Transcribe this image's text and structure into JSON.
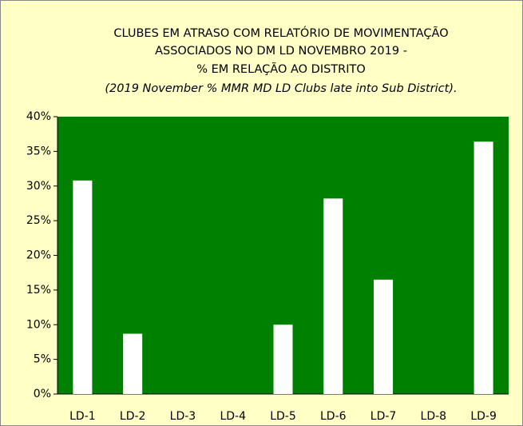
{
  "chart_data": {
    "type": "bar",
    "title": [
      "CLUBES EM ATRASO COM RELATÓRIO DE MOVIMENTAÇÃO",
      "ASSOCIADOS NO DM LD  NOVEMBRO 2019  -",
      "%  EM RELAÇÃO AO DISTRITO",
      "(2019 November % MMR MD LD Clubs late into Sub District)."
    ],
    "categories": [
      "LD-1",
      "LD-2",
      "LD-3",
      "LD-4",
      "LD-5",
      "LD-6",
      "LD-7",
      "LD-8",
      "LD-9"
    ],
    "values": [
      30.8,
      8.7,
      0,
      0,
      10,
      28.2,
      16.5,
      0,
      36.4
    ],
    "color": "#ffffff",
    "plot_background": "#008000",
    "ylim": [
      0,
      40
    ],
    "yticks": [
      {
        "value": 0,
        "label": "0%"
      },
      {
        "value": 5,
        "label": "5%"
      },
      {
        "value": 10,
        "label": "10%"
      },
      {
        "value": 15,
        "label": "15%"
      },
      {
        "value": 20,
        "label": "20%"
      },
      {
        "value": 25,
        "label": "25%"
      },
      {
        "value": 30,
        "label": "30%"
      },
      {
        "value": 35,
        "label": "35%"
      },
      {
        "value": 40,
        "label": "40%"
      }
    ]
  }
}
